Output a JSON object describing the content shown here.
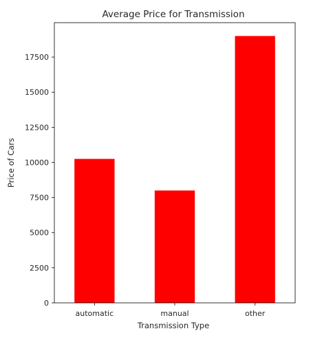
{
  "chart_data": {
    "type": "bar",
    "title": "Average Price for Transmission",
    "xlabel": "Transmission Type",
    "ylabel": "Price of Cars",
    "categories": [
      "automatic",
      "manual",
      "other"
    ],
    "values": [
      10250,
      8000,
      19000
    ],
    "ylim": [
      0,
      19950
    ],
    "yticks": [
      0,
      2500,
      5000,
      7500,
      10000,
      12500,
      15000,
      17500
    ],
    "bar_color": "#ff0000",
    "grid": false,
    "legend": "none"
  }
}
